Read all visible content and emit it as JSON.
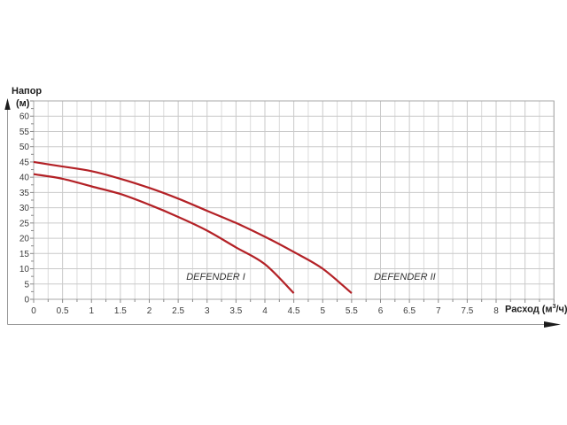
{
  "chart": {
    "y_axis_title_line1": "Напор",
    "y_axis_title_line2": "(м)",
    "x_axis_title_prefix": "Расход (м",
    "x_axis_title_sup": "3",
    "x_axis_title_suffix": "/ч)",
    "colors": {
      "curve": "#b32126",
      "grid_minor": "#dbdbdb",
      "grid_major": "#cacaca",
      "plot_border": "#a8a8a8",
      "tick": "#8a8a8a",
      "tick_label": "#3c3c3c",
      "axis_arrow_line": "#9a9a9a",
      "axis_arrow_head": "#1c1c1c",
      "annotation_text": "#333333"
    }
  },
  "chart_data": {
    "type": "line",
    "title": "",
    "xlabel": "Расход (м³/ч)",
    "ylabel": "Напор (м)",
    "xlim": [
      0,
      9
    ],
    "ylim": [
      0,
      65
    ],
    "x_grid_step": 0.25,
    "x_tick_step": 0.5,
    "y_tick_step": 5,
    "y_minor_tick_step": 2.5,
    "grid": true,
    "legend": "none",
    "x_tick_labels": [
      "0",
      "0.5",
      "1",
      "1.5",
      "2",
      "2.5",
      "3",
      "3.5",
      "4",
      "4.5",
      "5",
      "5.5",
      "6",
      "6.5",
      "7",
      "7.5",
      "8"
    ],
    "y_tick_labels": [
      "0",
      "5",
      "10",
      "15",
      "20",
      "25",
      "30",
      "35",
      "40",
      "45",
      "50",
      "55",
      "60"
    ],
    "series": [
      {
        "name": "DEFENDER I",
        "x": [
          0,
          0.5,
          1,
          1.5,
          2,
          2.5,
          3,
          3.5,
          4,
          4.5
        ],
        "y": [
          41,
          39.5,
          37,
          34.5,
          31,
          27,
          22.5,
          17,
          11.5,
          2
        ]
      },
      {
        "name": "DEFENDER II",
        "x": [
          0,
          0.5,
          1,
          1.5,
          2,
          2.5,
          3,
          3.5,
          4,
          4.5,
          5,
          5.5
        ],
        "y": [
          45,
          43.5,
          42,
          39.5,
          36.5,
          33,
          29,
          25,
          20.5,
          15.5,
          10,
          2
        ]
      }
    ],
    "annotations": [
      {
        "text": "DEFENDER I",
        "x": 3.15,
        "y": 7.5
      },
      {
        "text": "DEFENDER II",
        "x": 6.42,
        "y": 7.5
      }
    ]
  }
}
